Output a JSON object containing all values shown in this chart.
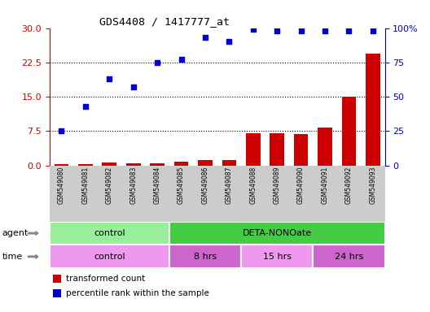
{
  "title": "GDS4408 / 1417777_at",
  "samples": [
    "GSM549080",
    "GSM549081",
    "GSM549082",
    "GSM549083",
    "GSM549084",
    "GSM549085",
    "GSM549086",
    "GSM549087",
    "GSM549088",
    "GSM549089",
    "GSM549090",
    "GSM549091",
    "GSM549092",
    "GSM549093"
  ],
  "bar_values": [
    0.2,
    0.3,
    0.6,
    0.5,
    0.5,
    0.8,
    1.1,
    1.1,
    7.0,
    7.0,
    6.8,
    8.2,
    15.0,
    24.5
  ],
  "scatter_values": [
    25,
    43,
    63,
    57,
    75,
    77,
    93,
    90,
    99,
    98,
    98,
    98,
    98,
    98
  ],
  "left_ylim": [
    0,
    30
  ],
  "right_ylim": [
    0,
    100
  ],
  "left_yticks": [
    0,
    7.5,
    15,
    22.5,
    30
  ],
  "right_yticks": [
    0,
    25,
    50,
    75,
    100
  ],
  "right_yticklabels": [
    "0",
    "25",
    "50",
    "75",
    "100%"
  ],
  "bar_color": "#cc0000",
  "scatter_color": "#0000cc",
  "dotted_line_values": [
    7.5,
    15,
    22.5
  ],
  "agent_blocks": [
    {
      "start": 0,
      "end": 5,
      "label": "control",
      "color": "#99ee99"
    },
    {
      "start": 5,
      "end": 14,
      "label": "DETA-NONOate",
      "color": "#44cc44"
    }
  ],
  "time_blocks": [
    {
      "start": 0,
      "end": 5,
      "label": "control",
      "color": "#ee99ee"
    },
    {
      "start": 5,
      "end": 8,
      "label": "8 hrs",
      "color": "#cc66cc"
    },
    {
      "start": 8,
      "end": 11,
      "label": "15 hrs",
      "color": "#ee99ee"
    },
    {
      "start": 11,
      "end": 14,
      "label": "24 hrs",
      "color": "#cc66cc"
    }
  ],
  "legend_items": [
    {
      "color": "#cc0000",
      "label": "transformed count"
    },
    {
      "color": "#0000cc",
      "label": "percentile rank within the sample"
    }
  ],
  "bar_color_red": "#cc0000",
  "scatter_color_blue": "#0000cc",
  "background_color": "#ffffff",
  "label_row_bg": "#cccccc",
  "agent_label": "agent",
  "time_label": "time",
  "arrow_color": "#888888"
}
